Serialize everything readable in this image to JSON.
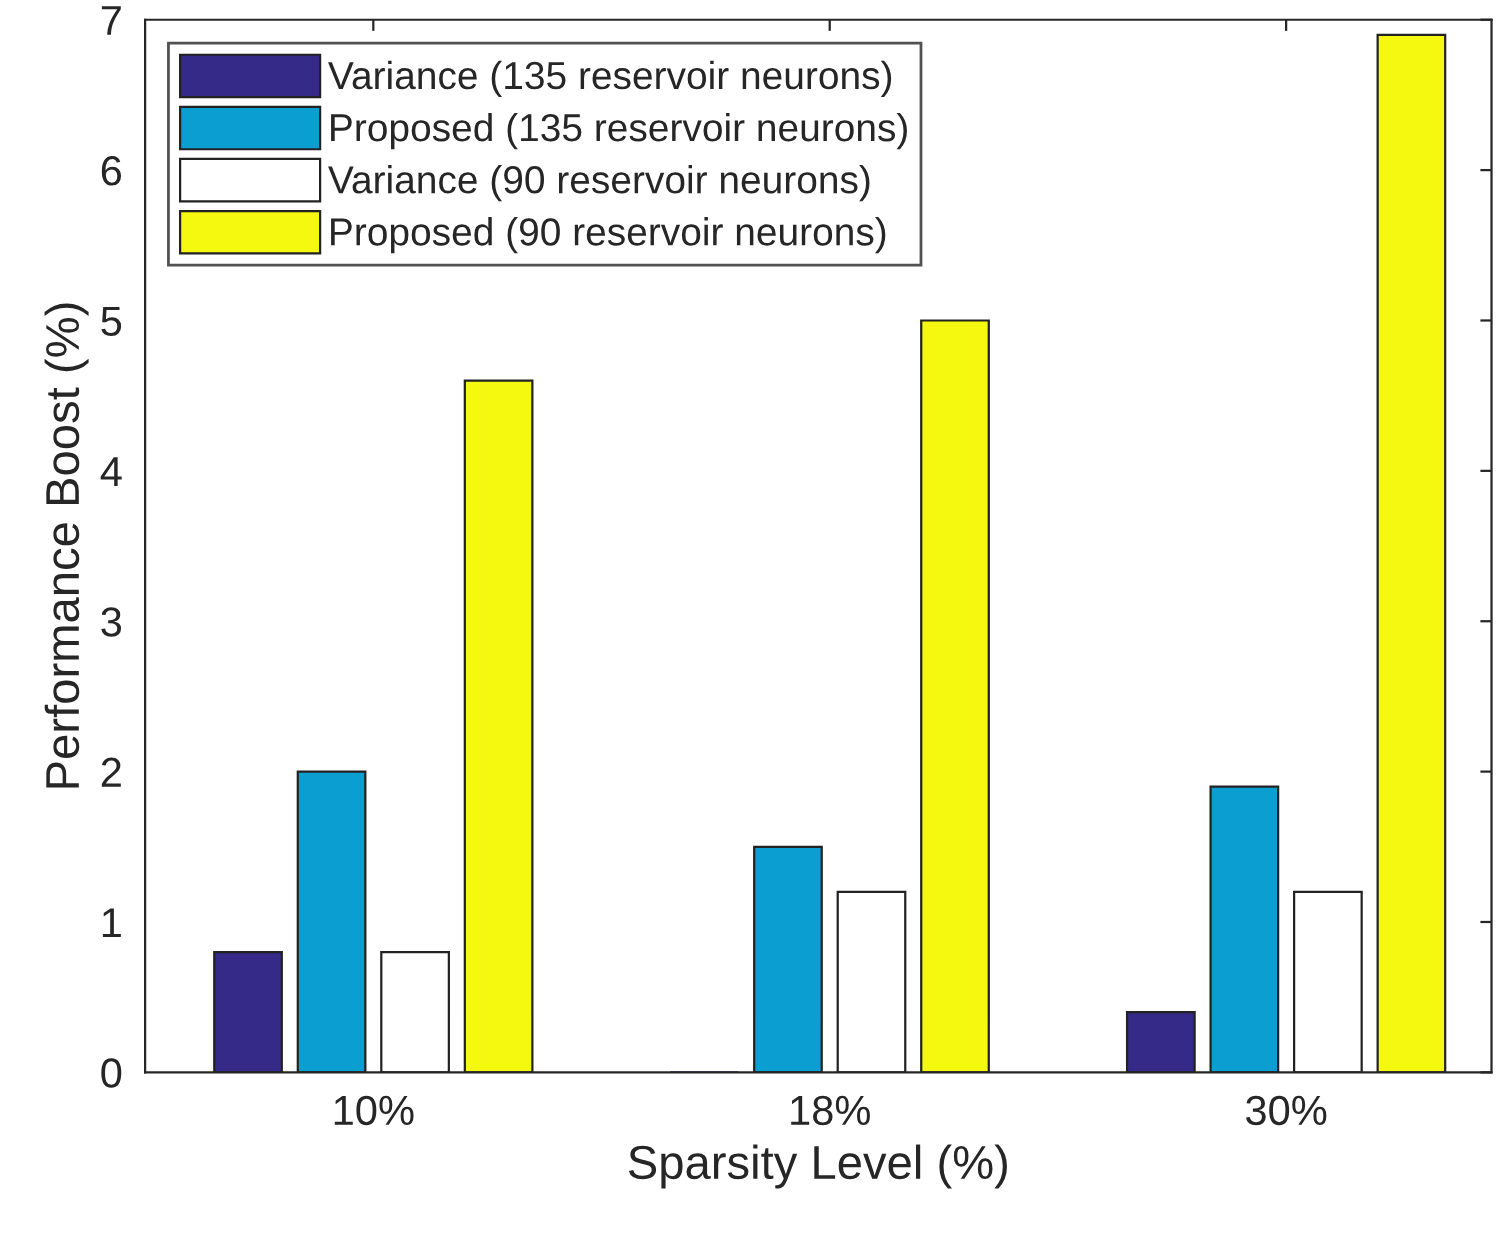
{
  "chart_data": {
    "type": "bar",
    "xlabel": "Sparsity Level (%)",
    "ylabel": "Performance Boost (%)",
    "categories": [
      "10%",
      "18%",
      "30%"
    ],
    "series": [
      {
        "name": "Variance (135 reservoir neurons)",
        "color": "#352a87",
        "values": [
          0.8,
          0,
          0.4
        ]
      },
      {
        "name": "Proposed (135 reservoir neurons)",
        "color": "#0a9fd0",
        "values": [
          2.0,
          1.5,
          1.9
        ]
      },
      {
        "name": "Variance (90 reservoir neurons)",
        "color": "#ffffff",
        "values": [
          0.8,
          1.2,
          1.2
        ]
      },
      {
        "name": "Proposed (90 reservoir neurons)",
        "color": "#f5f80f",
        "values": [
          4.6,
          5.0,
          6.9
        ]
      }
    ],
    "ylim": [
      0,
      7
    ],
    "yticks": [
      0,
      1,
      2,
      3,
      4,
      5,
      6,
      7
    ],
    "grid": false,
    "legend": "top left"
  }
}
